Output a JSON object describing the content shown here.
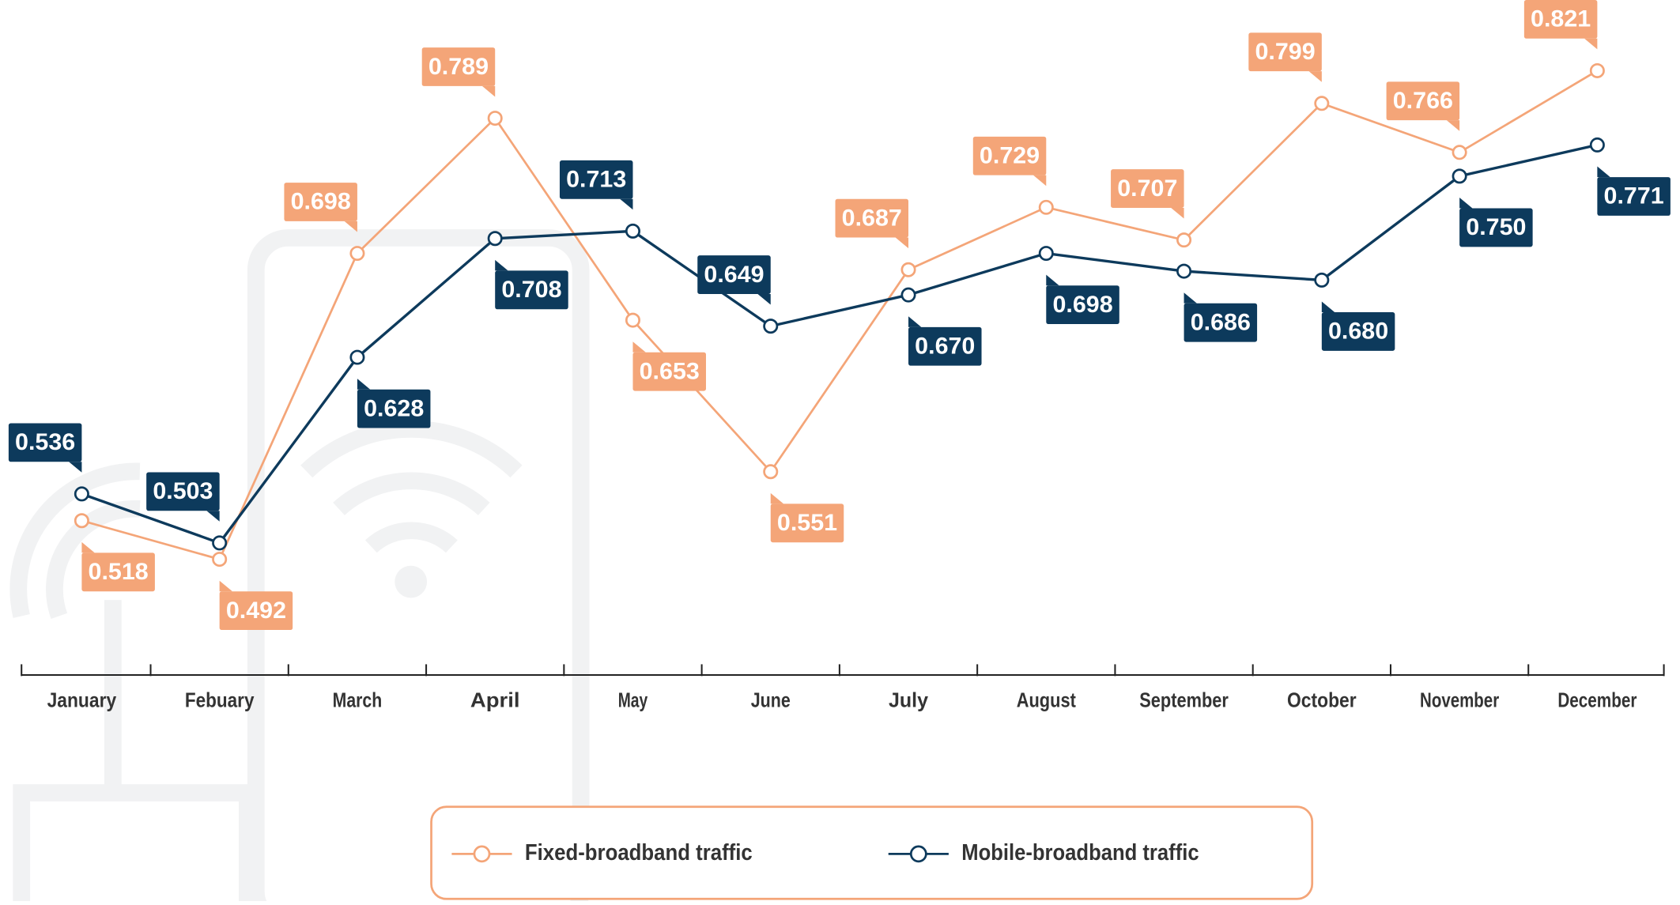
{
  "chart_data": {
    "type": "line",
    "categories": [
      "January",
      "Febuary",
      "March",
      "April",
      "May",
      "June",
      "July",
      "August",
      "September",
      "October",
      "November",
      "December"
    ],
    "series": [
      {
        "name": "Fixed-broadband traffic",
        "color": "#f4a578",
        "values": [
          0.518,
          0.492,
          0.698,
          0.789,
          0.653,
          0.551,
          0.687,
          0.729,
          0.707,
          0.799,
          0.766,
          0.821
        ],
        "value_labels": [
          "0.518",
          "0.492",
          "0.698",
          "0.789",
          "0.653",
          "0.551",
          "0.687",
          "0.729",
          "0.707",
          "0.799",
          "0.766",
          "0.821"
        ]
      },
      {
        "name": "Mobile-broadband traffic",
        "color": "#0d3a5c",
        "values": [
          0.536,
          0.503,
          0.628,
          0.708,
          0.713,
          0.649,
          0.67,
          0.698,
          0.686,
          0.68,
          0.75,
          0.771
        ],
        "value_labels": [
          "0.536",
          "0.503",
          "0.628",
          "0.708",
          "0.713",
          "0.649",
          "0.670",
          "0.698",
          "0.686",
          "0.680",
          "0.750",
          "0.771"
        ]
      }
    ],
    "legend": "bottom"
  }
}
